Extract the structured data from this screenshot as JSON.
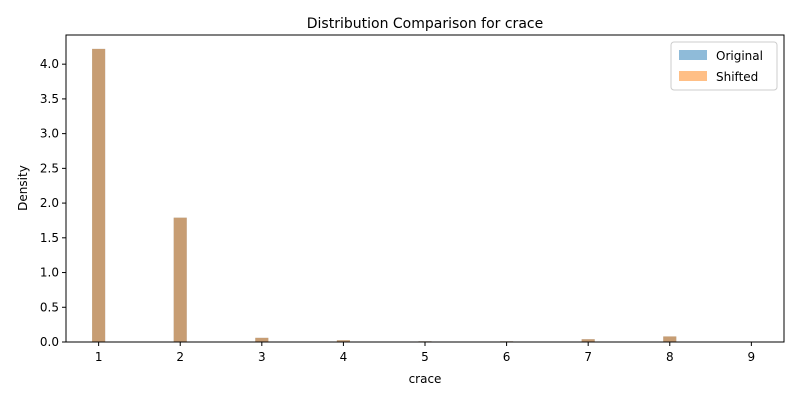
{
  "chart_data": {
    "type": "bar",
    "title": "Distribution Comparison for crace",
    "xlabel": "crace",
    "ylabel": "Density",
    "xlim": [
      0.6,
      9.4
    ],
    "ylim": [
      0,
      4.42
    ],
    "xticks": [
      "1",
      "2",
      "3",
      "4",
      "5",
      "6",
      "7",
      "8",
      "9"
    ],
    "yticks": [
      "0.0",
      "0.5",
      "1.0",
      "1.5",
      "2.0",
      "2.5",
      "3.0",
      "3.5",
      "4.0"
    ],
    "bin_width": 0.16,
    "x": [
      1,
      2,
      3,
      4,
      5,
      6,
      7,
      8,
      9
    ],
    "series": [
      {
        "name": "Original",
        "color": "#1f77b4",
        "opacity": 0.5,
        "values": [
          4.22,
          1.79,
          0.06,
          0.025,
          0.01,
          0.01,
          0.04,
          0.08,
          0.0
        ]
      },
      {
        "name": "Shifted",
        "color": "#ff7f0e",
        "opacity": 0.5,
        "values": [
          4.22,
          1.79,
          0.06,
          0.025,
          0.01,
          0.01,
          0.04,
          0.08,
          0.0
        ]
      }
    ],
    "legend_position": "top-right",
    "grid": false
  }
}
